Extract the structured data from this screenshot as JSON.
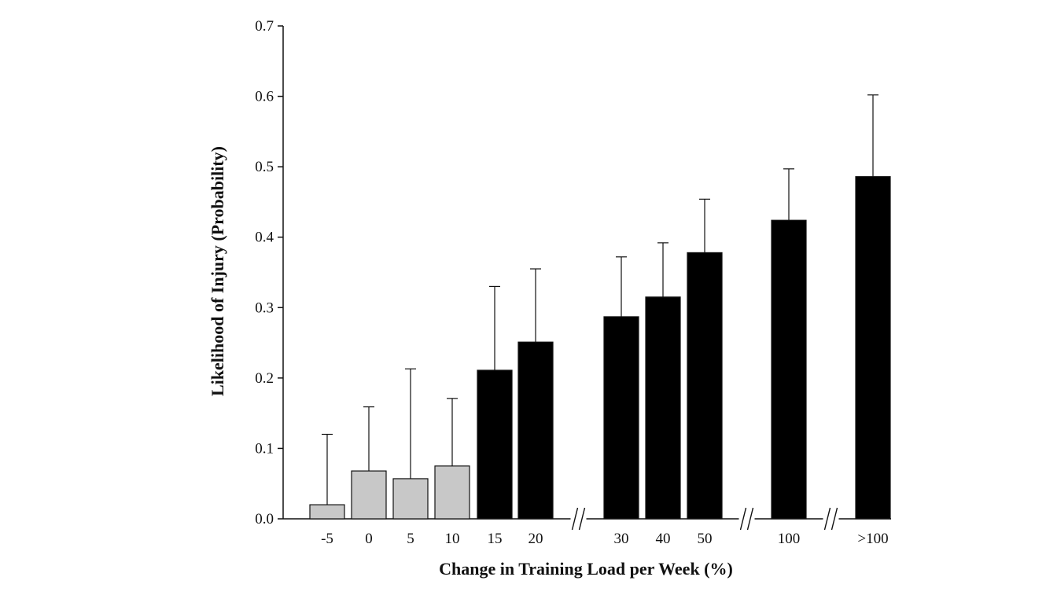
{
  "chart_data": {
    "type": "bar",
    "xlabel": "Change in Training Load per Week (%)",
    "ylabel": "Likelihood of Injury (Probability)",
    "ylim": [
      0,
      0.7
    ],
    "yticks": [
      "0.0",
      "0.1",
      "0.2",
      "0.3",
      "0.4",
      "0.5",
      "0.6",
      "0.7"
    ],
    "categories": [
      "-5",
      "0",
      "5",
      "10",
      "15",
      "20",
      "30",
      "40",
      "50",
      "100",
      ">100"
    ],
    "values": [
      0.02,
      0.068,
      0.057,
      0.075,
      0.211,
      0.251,
      0.287,
      0.315,
      0.378,
      0.424,
      0.486
    ],
    "error_upper": [
      0.12,
      0.159,
      0.213,
      0.171,
      0.33,
      0.355,
      0.372,
      0.392,
      0.454,
      0.497,
      0.602
    ],
    "bar_colors": [
      "#c8c8c8",
      "#c8c8c8",
      "#c8c8c8",
      "#c8c8c8",
      "#000000",
      "#000000",
      "#000000",
      "#000000",
      "#000000",
      "#000000",
      "#000000"
    ],
    "axis_breaks_after": [
      "20",
      "50",
      "100"
    ],
    "grid": false,
    "legend": "none"
  }
}
